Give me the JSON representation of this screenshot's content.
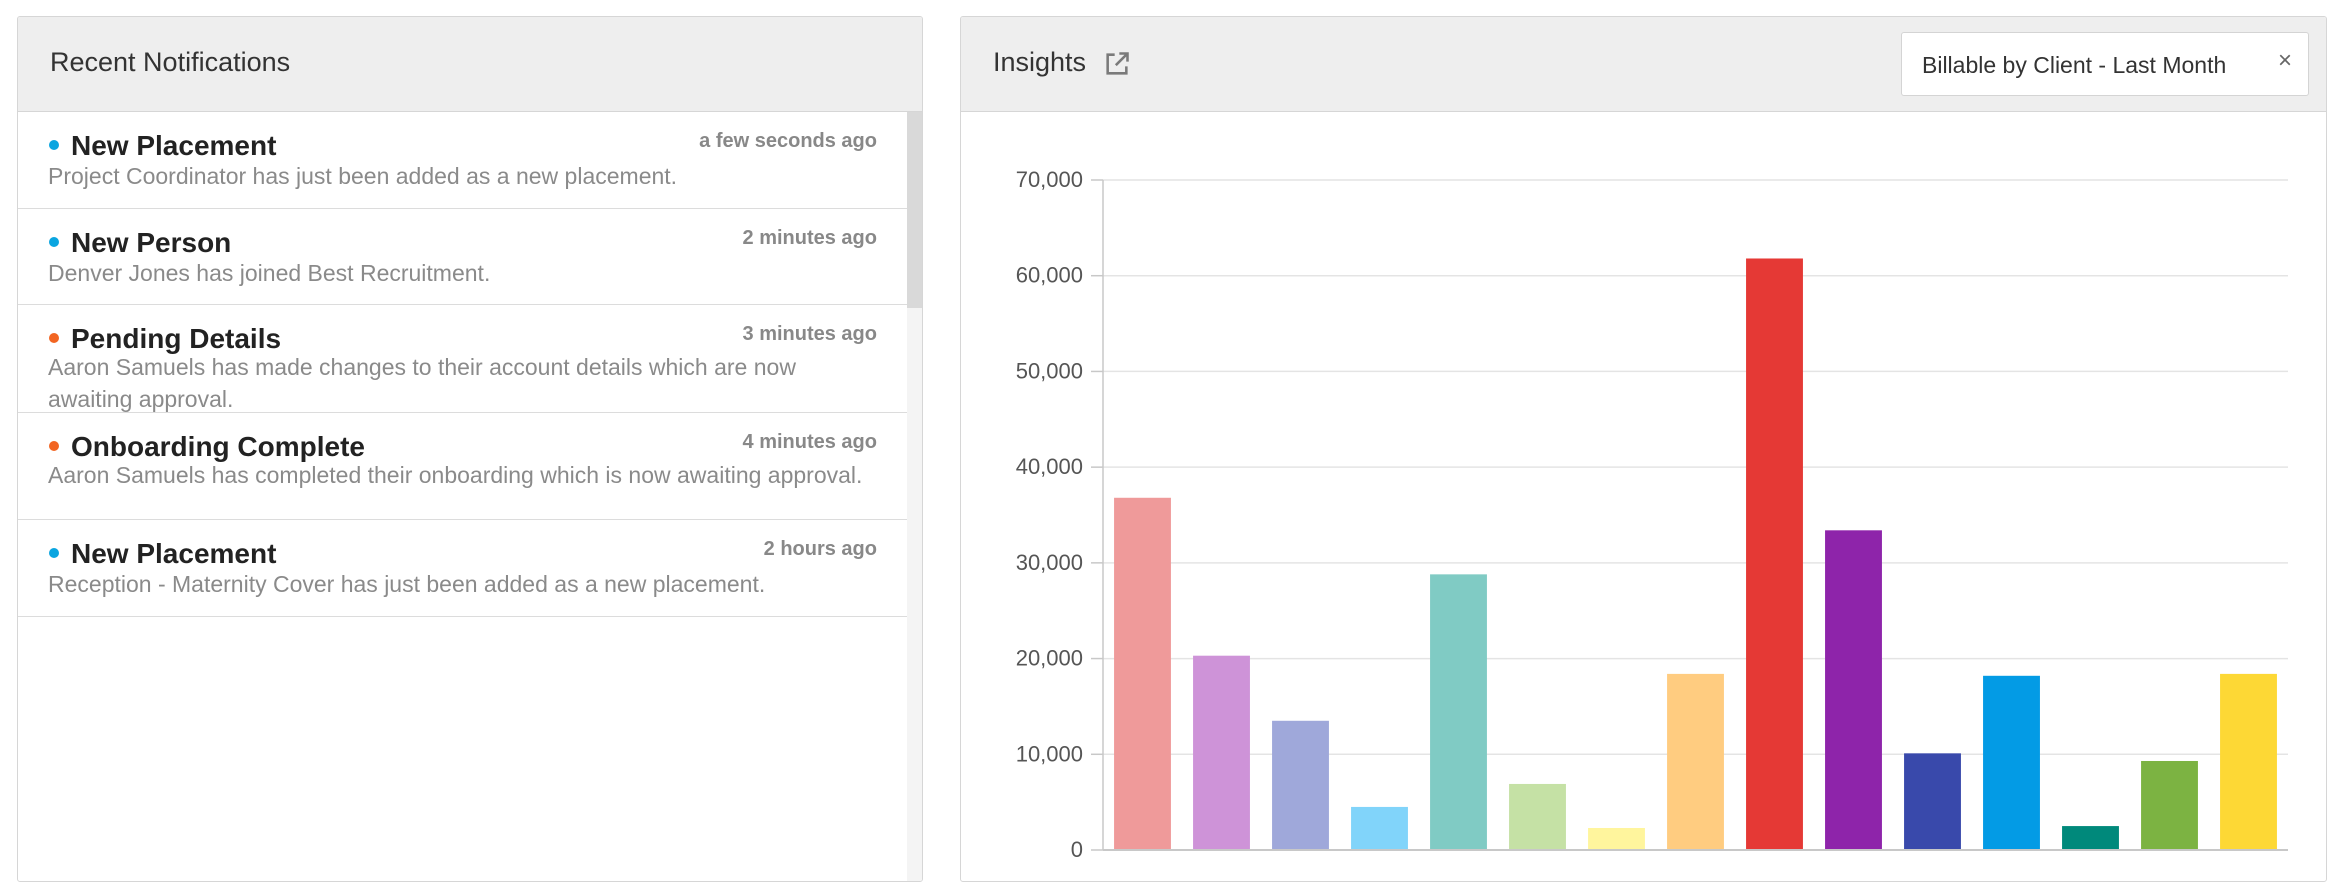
{
  "notifications_panel": {
    "title": "Recent Notifications",
    "items": [
      {
        "title": "New Placement",
        "time": "a few seconds ago",
        "message": "Project Coordinator has just been added as a new placement.",
        "status_color": "#0aa5e0"
      },
      {
        "title": "New Person",
        "time": "2 minutes ago",
        "message": "Denver Jones has joined Best Recruitment.",
        "status_color": "#0aa5e0"
      },
      {
        "title": "Pending Details",
        "time": "3 minutes ago",
        "message": "Aaron Samuels has made changes to their account details which are now awaiting approval.",
        "status_color": "#f26522"
      },
      {
        "title": "Onboarding Complete",
        "time": "4 minutes ago",
        "message": "Aaron Samuels has completed their onboarding which is now awaiting approval.",
        "status_color": "#f26522"
      },
      {
        "title": "New Placement",
        "time": "2 hours ago",
        "message": "Reception - Maternity Cover has just been added as a new placement.",
        "status_color": "#0aa5e0"
      }
    ]
  },
  "insights_panel": {
    "title": "Insights",
    "open_icon": "external-link-icon",
    "report_select": {
      "value": "Billable by Client - Last Month",
      "clear_icon": "×"
    }
  },
  "chart_data": {
    "type": "bar",
    "title": "",
    "xlabel": "",
    "ylabel": "",
    "ylim": [
      0,
      70000
    ],
    "y_ticks": [
      "0",
      "10,000",
      "20,000",
      "30,000",
      "40,000",
      "50,000",
      "60,000",
      "70,000"
    ],
    "grid": true,
    "legend": "none",
    "values": [
      36800,
      20300,
      13500,
      4500,
      28800,
      6900,
      2300,
      18400,
      61800,
      33400,
      10100,
      18200,
      2500,
      9300,
      18400
    ],
    "colors": [
      "#ef9a9a",
      "#ce93d8",
      "#9fa8da",
      "#81d4fa",
      "#80cbc4",
      "#c5e1a5",
      "#fff59d",
      "#ffcc80",
      "#e53935",
      "#8e24aa",
      "#3949ab",
      "#039be5",
      "#00897b",
      "#7cb342",
      "#fdd835"
    ]
  }
}
